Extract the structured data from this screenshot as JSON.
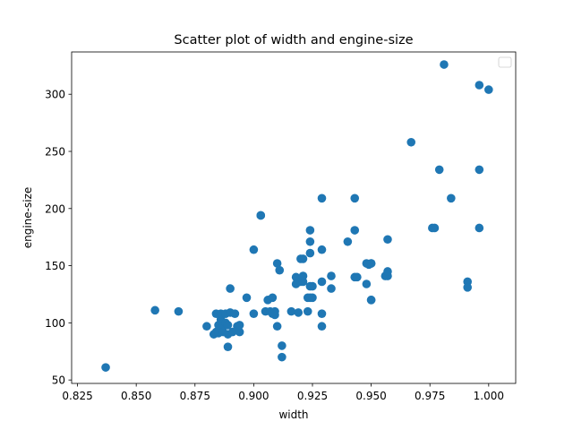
{
  "chart_data": {
    "type": "scatter",
    "title": "Scatter plot of width and engine-size",
    "xlabel": "width",
    "ylabel": "engine-size",
    "xlim": [
      0.8225,
      1.0115
    ],
    "ylim": [
      47,
      337
    ],
    "xticks": [
      0.825,
      0.85,
      0.875,
      0.9,
      0.925,
      0.95,
      0.975,
      1.0
    ],
    "xtick_labels": [
      "0.825",
      "0.850",
      "0.875",
      "0.900",
      "0.925",
      "0.950",
      "0.975",
      "1.000"
    ],
    "yticks": [
      50,
      100,
      150,
      200,
      250,
      300
    ],
    "ytick_labels": [
      "50",
      "100",
      "150",
      "200",
      "250",
      "300"
    ],
    "grid": false,
    "legend": {
      "placement": "top-right",
      "entries": []
    },
    "marker_color": "#1f77b4",
    "series": [
      {
        "x": [
          0.837,
          0.858,
          0.868,
          0.88,
          0.883,
          0.884,
          0.884,
          0.885,
          0.885,
          0.886,
          0.886,
          0.887,
          0.887,
          0.888,
          0.888,
          0.889,
          0.889,
          0.889,
          0.89,
          0.89,
          0.891,
          0.892,
          0.893,
          0.894,
          0.894,
          0.897,
          0.9,
          0.9,
          0.903,
          0.903,
          0.905,
          0.906,
          0.907,
          0.908,
          0.908,
          0.909,
          0.909,
          0.91,
          0.91,
          0.911,
          0.912,
          0.912,
          0.916,
          0.918,
          0.918,
          0.919,
          0.92,
          0.92,
          0.921,
          0.921,
          0.921,
          0.923,
          0.923,
          0.924,
          0.924,
          0.924,
          0.924,
          0.924,
          0.925,
          0.925,
          0.929,
          0.929,
          0.929,
          0.929,
          0.929,
          0.933,
          0.933,
          0.94,
          0.943,
          0.943,
          0.943,
          0.944,
          0.948,
          0.948,
          0.949,
          0.95,
          0.95,
          0.95,
          0.95,
          0.956,
          0.957,
          0.957,
          0.957,
          0.967,
          0.976,
          0.977,
          0.979,
          0.981,
          0.984,
          0.991,
          0.991,
          0.996,
          0.996,
          0.996,
          1.0
        ],
        "y": [
          61,
          111,
          110,
          97,
          90,
          92,
          108,
          98,
          91,
          103,
          108,
          97,
          92,
          100,
          108,
          79,
          98,
          90,
          109,
          130,
          92,
          108,
          97,
          92,
          98,
          122,
          108,
          164,
          194,
          194,
          110,
          120,
          110,
          108,
          122,
          110,
          107,
          152,
          97,
          146,
          80,
          70,
          110,
          140,
          134,
          109,
          156,
          136,
          156,
          136,
          141,
          122,
          110,
          122,
          132,
          161,
          171,
          181,
          122,
          132,
          136,
          209,
          164,
          97,
          108,
          141,
          130,
          171,
          209,
          181,
          140,
          140,
          152,
          134,
          151,
          152,
          120,
          120,
          152,
          141,
          141,
          145,
          173,
          258,
          183,
          183,
          234,
          326,
          209,
          136,
          131,
          308,
          234,
          183,
          304
        ]
      }
    ]
  }
}
